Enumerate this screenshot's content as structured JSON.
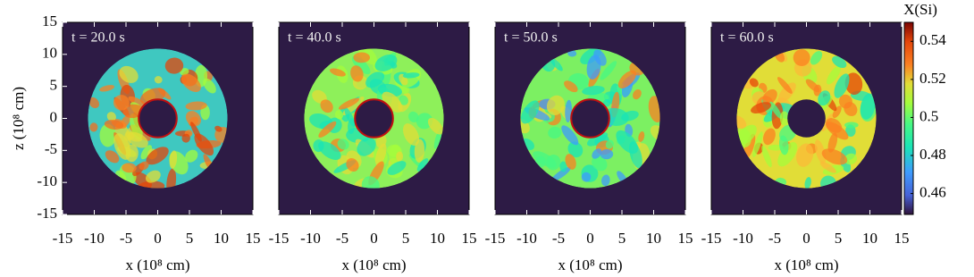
{
  "chart_data": [
    {
      "type": "heatmap",
      "title": "t = 20.0 s",
      "xlabel": "x (10⁸ cm)",
      "ylabel": "z (10⁸ cm)",
      "xlim": [
        -15,
        15
      ],
      "ylim": [
        -15,
        15
      ],
      "xticks": [
        -15,
        -10,
        -5,
        0,
        5,
        10,
        15
      ],
      "yticks": [
        -15,
        -10,
        -5,
        0,
        5,
        10,
        15
      ],
      "background": "#2d1b45"
    },
    {
      "type": "heatmap",
      "title": "t = 40.0 s",
      "xlabel": "x (10⁸ cm)",
      "xlim": [
        -15,
        15
      ],
      "ylim": [
        -15,
        15
      ],
      "xticks": [
        -15,
        -10,
        -5,
        0,
        5,
        10,
        15
      ],
      "background": "#2d1b45"
    },
    {
      "type": "heatmap",
      "title": "t = 50.0 s",
      "xlabel": "x (10⁸ cm)",
      "xlim": [
        -15,
        15
      ],
      "ylim": [
        -15,
        15
      ],
      "xticks": [
        -15,
        -10,
        -5,
        0,
        5,
        10,
        15
      ],
      "background": "#2d1b45"
    },
    {
      "type": "heatmap",
      "title": "t = 60.0 s",
      "xlabel": "x (10⁸ cm)",
      "xlim": [
        -15,
        15
      ],
      "ylim": [
        -15,
        15
      ],
      "xticks": [
        -15,
        -10,
        -5,
        0,
        5,
        10,
        15
      ],
      "background": "#2d1b45",
      "colorbar": {
        "label": "X(Si)",
        "lim": [
          0.449,
          0.55
        ],
        "ticks": [
          0.46,
          0.48,
          0.5,
          0.52,
          0.54
        ]
      }
    }
  ]
}
